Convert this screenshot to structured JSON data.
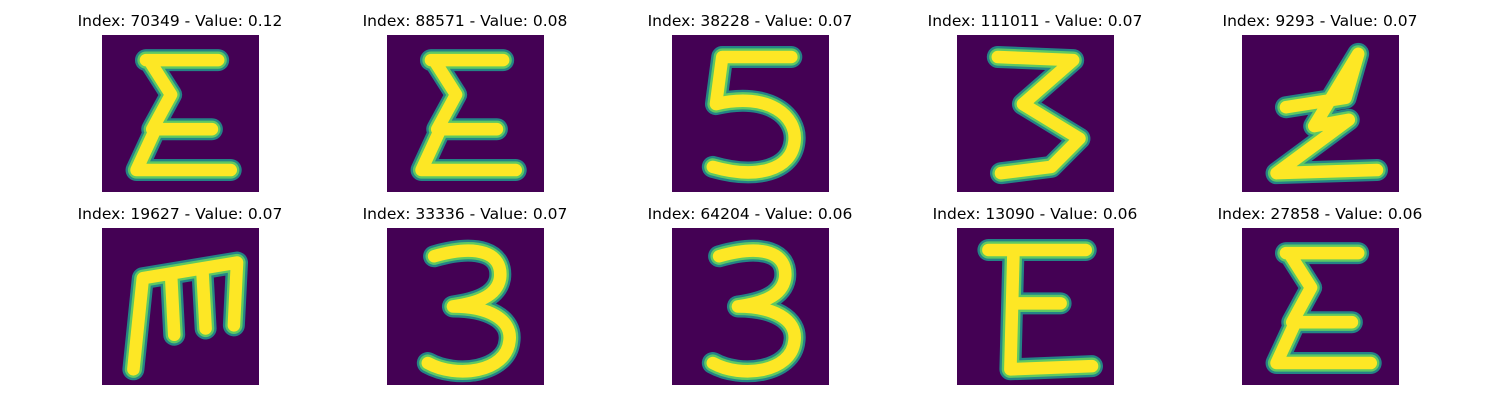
{
  "colors": {
    "background": "#440154",
    "stroke_outer": "#21918c",
    "stroke_mid": "#5ec962",
    "stroke_core": "#fde725"
  },
  "panels": [
    {
      "title": "Index: 70349 - Value: 0.12",
      "glyph": "sigma-e"
    },
    {
      "title": "Index: 88571 - Value: 0.08",
      "glyph": "sigma-e"
    },
    {
      "title": "Index: 38228 - Value: 0.07",
      "glyph": "five"
    },
    {
      "title": "Index: 111011 - Value: 0.07",
      "glyph": "three-zigzag"
    },
    {
      "title": "Index: 9293 - Value: 0.07",
      "glyph": "z-zigzag"
    },
    {
      "title": "Index: 19627 - Value: 0.07",
      "glyph": "m-shape"
    },
    {
      "title": "Index: 33336 - Value: 0.07",
      "glyph": "three"
    },
    {
      "title": "Index: 64204 - Value: 0.06",
      "glyph": "three"
    },
    {
      "title": "Index: 13090 - Value: 0.06",
      "glyph": "e-shape"
    },
    {
      "title": "Index: 27858 - Value: 0.06",
      "glyph": "sigma-e"
    }
  ]
}
